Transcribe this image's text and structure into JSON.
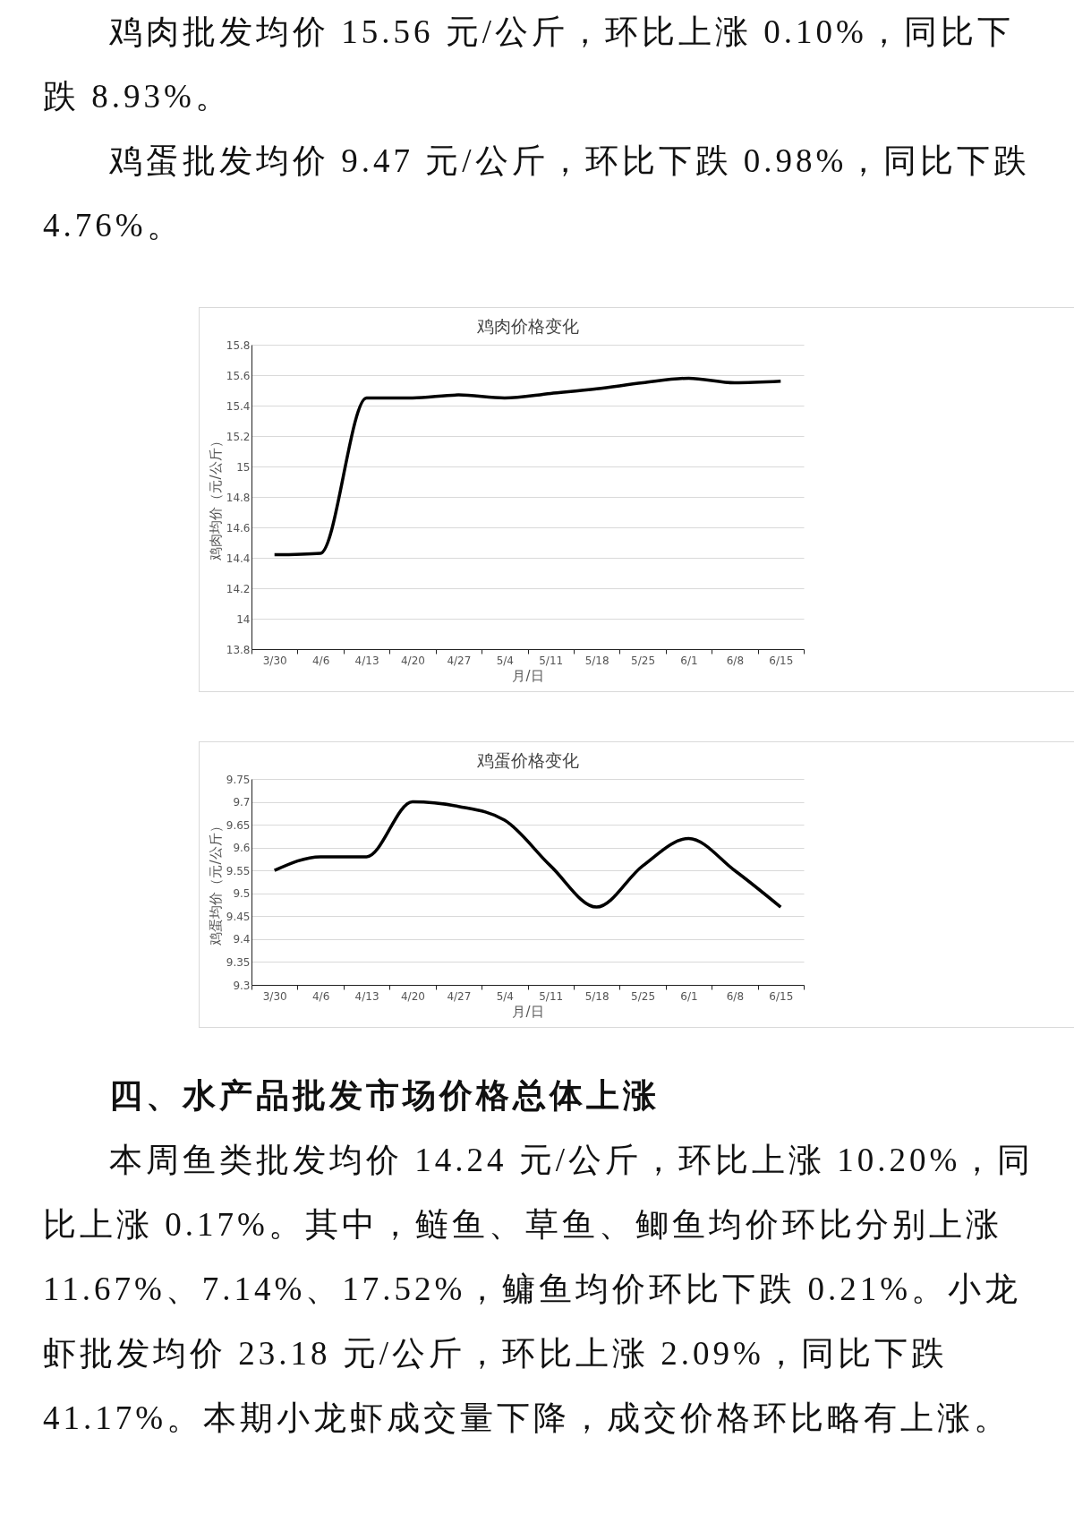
{
  "chart_data": [
    {
      "type": "line",
      "title": "鸡肉价格变化",
      "xlabel": "月/日",
      "ylabel": "鸡肉均价（元/公斤）",
      "annotations": [
        "鸡肉批发均价 15.56 元/公斤，环比上涨 0.10%，同比下跌 8.93%。",
        "鸡蛋批发均价 9.47 元/公斤，环比下跌 0.98%，同比下跌 4.76%。"
      ],
      "categories": [
        "3/30",
        "4/6",
        "4/13",
        "4/20",
        "4/27",
        "5/4",
        "5/11",
        "5/18",
        "5/25",
        "6/1",
        "6/8",
        "6/15"
      ],
      "series": [
        {
          "color": "#000000",
          "values": [
            14.42,
            14.43,
            15.45,
            15.45,
            15.47,
            15.45,
            15.48,
            15.51,
            15.55,
            15.58,
            15.55,
            15.56
          ]
        }
      ],
      "ylim": [
        13.8,
        15.8
      ],
      "yticks": [
        13.8,
        14,
        14.2,
        14.4,
        14.6,
        14.8,
        15,
        15.2,
        15.4,
        15.6,
        15.8
      ],
      "grid": "y",
      "legend": false,
      "marker": "none",
      "line_style": "solid"
    },
    {
      "type": "line",
      "title": "鸡蛋价格变化",
      "xlabel": "月/日",
      "ylabel": "鸡蛋均价（元/公斤）",
      "annotations": [
        "四、水产品批发市场价格总体上涨",
        "本周鱼类批发均价 14.24 元/公斤，环比上涨 10.20%，同比上涨 0.17%。其中，鲢鱼、草鱼、鲫鱼均价环比分别上涨 11.67%、7.14%、17.52%，鳙鱼均价环比下跌 0.21%。小龙虾批发均价 23.18 元/公斤，环比上涨 2.09%，同比下跌 41.17%。本期小龙虾成交量下降，成交价格环比略有上涨。"
      ],
      "categories": [
        "3/30",
        "4/6",
        "4/13",
        "4/20",
        "4/27",
        "5/4",
        "5/11",
        "5/18",
        "5/25",
        "6/1",
        "6/8",
        "6/15"
      ],
      "series": [
        {
          "color": "#000000",
          "values": [
            9.55,
            9.58,
            9.58,
            9.7,
            9.69,
            9.66,
            9.56,
            9.47,
            9.56,
            9.62,
            9.55,
            9.47
          ]
        }
      ],
      "ylim": [
        9.3,
        9.75
      ],
      "yticks": [
        9.3,
        9.35,
        9.4,
        9.45,
        9.5,
        9.55,
        9.6,
        9.65,
        9.7,
        9.75
      ],
      "grid": "y",
      "legend": false,
      "marker": "none",
      "line_style": "solid"
    }
  ]
}
